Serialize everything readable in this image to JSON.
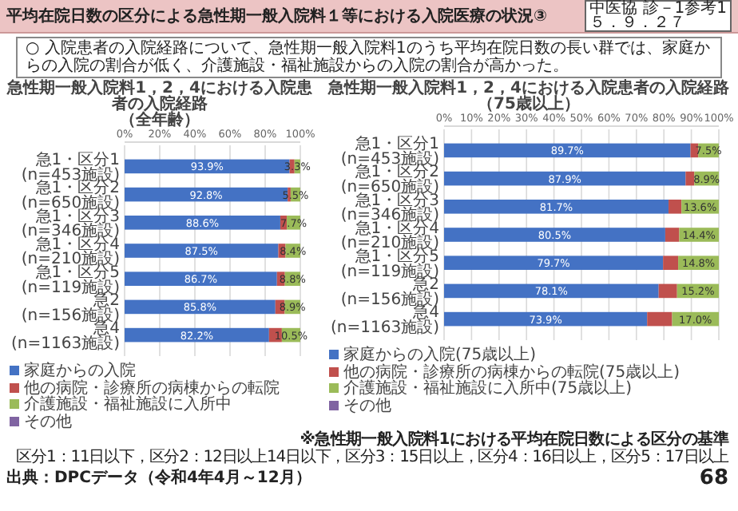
{
  "chart_data": [
    {
      "type": "bar",
      "orientation": "horizontal",
      "stacked": true,
      "title": "急性期一般入院料1，2，4における入院患者の入院経路",
      "subtitle": "（全年齢）",
      "categories": [
        "急1・区分1(n=453施設)",
        "急1・区分2(n=650施設)",
        "急1・区分3(n=346施設)",
        "急1・区分4(n=210施設)",
        "急1・区分5(n=119施設)",
        "急2(n=156施設)",
        "急4(n=1163施設)"
      ],
      "series": [
        {
          "name": "家庭からの入院",
          "color": "#4472c4",
          "values": [
            93.9,
            92.8,
            88.6,
            87.5,
            86.7,
            85.8,
            82.2
          ],
          "value_labels": [
            "93.9%",
            "92.8%",
            "88.6%",
            "87.5%",
            "86.7%",
            "85.8%",
            "82.2%"
          ]
        },
        {
          "name": "他の病院・診療所の病棟からの転院",
          "color": "#c0504d",
          "values": [
            2.8,
            1.7,
            3.7,
            4.1,
            4.5,
            5.3,
            7.3
          ]
        },
        {
          "name": "介護施設・福祉施設に入所中",
          "color": "#9bbb59",
          "values": [
            3.3,
            5.5,
            7.7,
            8.4,
            8.8,
            8.9,
            10.5
          ],
          "value_labels": [
            "3.3%",
            "5.5%",
            "7.7%",
            "8.4%",
            "8.8%",
            "8.9%",
            "10.5%"
          ]
        },
        {
          "name": "その他",
          "color": "#8064a2",
          "values": [
            0,
            0,
            0,
            0,
            0,
            0,
            0
          ]
        }
      ],
      "xlim": [
        0,
        100
      ],
      "xticks": [
        {
          "value": 0,
          "label": "0%"
        },
        {
          "value": 20,
          "label": "20%"
        },
        {
          "value": 40,
          "label": "40%"
        },
        {
          "value": 60,
          "label": "60%"
        },
        {
          "value": 80,
          "label": "80%"
        },
        {
          "value": 100,
          "label": "100%"
        }
      ],
      "grid": "x",
      "legend": "bottom",
      "annotations": [
        "平均在院日数の区分による急性期一般入院料１等における入院医療の状況③",
        "中医協 診－1参考1",
        "５．９．２７",
        "○ 入院患者の入院経路について、急性期一般入院料1のうち平均在院日数の長い群では、家庭からの入院の割合が低く、介護施設・福祉施設からの入院の割合が高かった。"
      ]
    },
    {
      "type": "bar",
      "orientation": "horizontal",
      "stacked": true,
      "title": "急性期一般入院料1，2，4における入院患者の入院経路",
      "subtitle": "（75歳以上）",
      "categories": [
        "急1・区分1(n=453施設)",
        "急1・区分2(n=650施設)",
        "急1・区分3(n=346施設)",
        "急1・区分4(n=210施設)",
        "急1・区分5(n=119施設)",
        "急2(n=156施設)",
        "急4(n=1163施設)"
      ],
      "series": [
        {
          "name": "家庭からの入院(75歳以上)",
          "color": "#4472c4",
          "values": [
            89.7,
            87.9,
            81.7,
            80.5,
            79.7,
            78.1,
            73.9
          ],
          "value_labels": [
            "89.7%",
            "87.9%",
            "81.7%",
            "80.5%",
            "79.7%",
            "78.1%",
            "73.9%"
          ]
        },
        {
          "name": "他の病院・診療所の病棟からの転院(75歳以上)",
          "color": "#c0504d",
          "values": [
            2.8,
            3.2,
            4.7,
            5.1,
            5.5,
            6.7,
            9.1
          ]
        },
        {
          "name": "介護施設・福祉施設に入所中(75歳以上)",
          "color": "#9bbb59",
          "values": [
            7.5,
            8.9,
            13.6,
            14.4,
            14.8,
            15.2,
            17.0
          ],
          "value_labels": [
            "7.5%",
            "8.9%",
            "13.6%",
            "14.4%",
            "14.8%",
            "15.2%",
            "17.0%"
          ]
        },
        {
          "name": "その他",
          "color": "#8064a2",
          "values": [
            0,
            0,
            0,
            0,
            0,
            0,
            0
          ]
        }
      ],
      "xlim": [
        0,
        100
      ],
      "xticks": [
        {
          "value": 0,
          "label": "0%"
        },
        {
          "value": 10,
          "label": "10%"
        },
        {
          "value": 20,
          "label": "20%"
        },
        {
          "value": 30,
          "label": "30%"
        },
        {
          "value": 40,
          "label": "40%"
        },
        {
          "value": 50,
          "label": "50%"
        },
        {
          "value": 60,
          "label": "60%"
        },
        {
          "value": 70,
          "label": "70%"
        },
        {
          "value": 80,
          "label": "80%"
        },
        {
          "value": 90,
          "label": "90%"
        },
        {
          "value": 100,
          "label": "100%"
        }
      ],
      "grid": "x",
      "legend": "bottom",
      "annotations": [
        "※急性期一般入院料1における平均在院日数による区分の基準",
        "区分1：11日以下，区分2：12日以上14日以下，区分3：15日以上，区分4：16日以上，区分5：17日以上",
        "出典：DPCデータ（令和4年4月～12月）",
        "68"
      ]
    }
  ]
}
